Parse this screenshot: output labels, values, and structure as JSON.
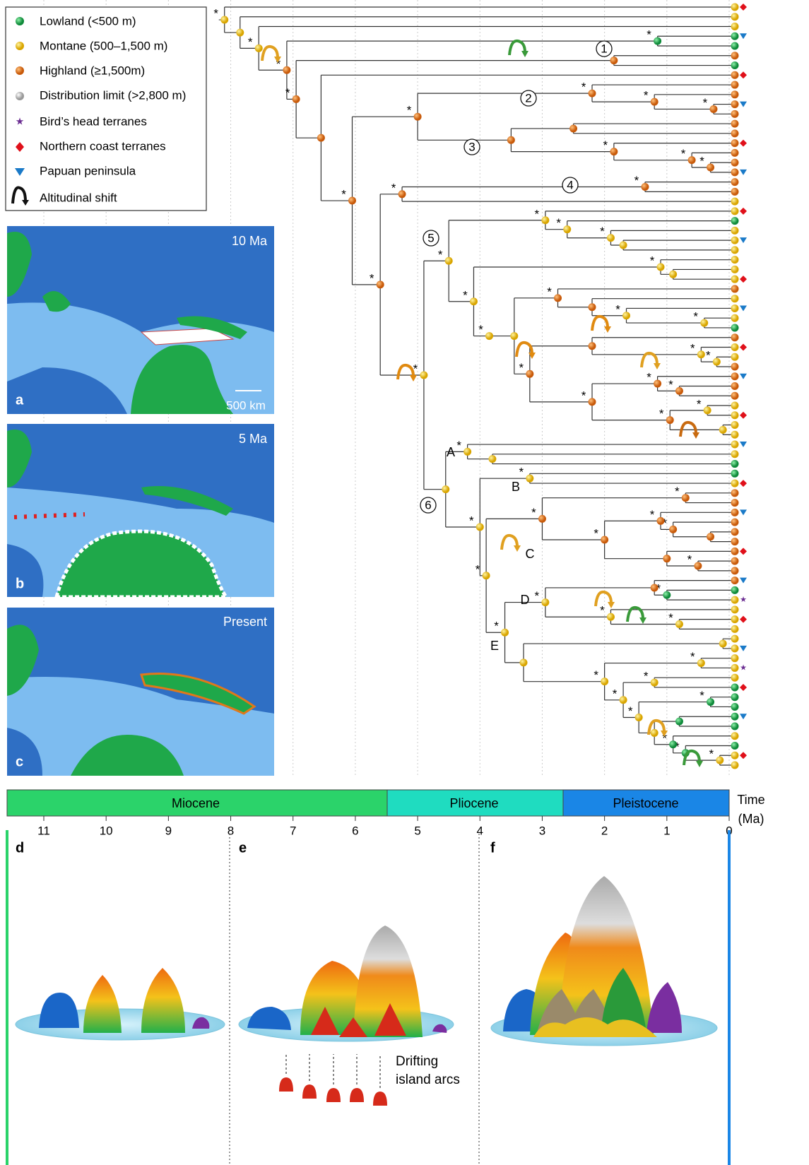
{
  "legend": {
    "items": [
      "Lowland (<500 m)",
      "Montane (500–1,500 m)",
      "Highland (≥1,500m)",
      "Distribution limit (>2,800 m)",
      "Bird’s head terranes",
      "Northern coast terranes",
      "Papuan peninsula",
      "Altitudinal shift"
    ]
  },
  "maps": [
    {
      "panel": "a",
      "age": "10 Ma",
      "scale": "500 km"
    },
    {
      "panel": "b",
      "age": "5 Ma"
    },
    {
      "panel": "c",
      "age": "Present"
    }
  ],
  "tree": {
    "support_marker": "*",
    "clades": [
      "1",
      "2",
      "3",
      "4",
      "5",
      "6"
    ],
    "lineages": [
      "A",
      "B",
      "C",
      "D",
      "E"
    ]
  },
  "timescale": {
    "epochs": [
      "Miocene",
      "Pliocene",
      "Pleistocene"
    ],
    "axis_label": [
      "Time",
      "(Ma)"
    ],
    "ticks": [
      11,
      10,
      9,
      8,
      7,
      6,
      5,
      4,
      3,
      2,
      1,
      0
    ]
  },
  "panels": [
    {
      "label": "d"
    },
    {
      "label": "e",
      "annotation": [
        "Drifting",
        "island arcs"
      ]
    },
    {
      "label": "f"
    }
  ]
}
